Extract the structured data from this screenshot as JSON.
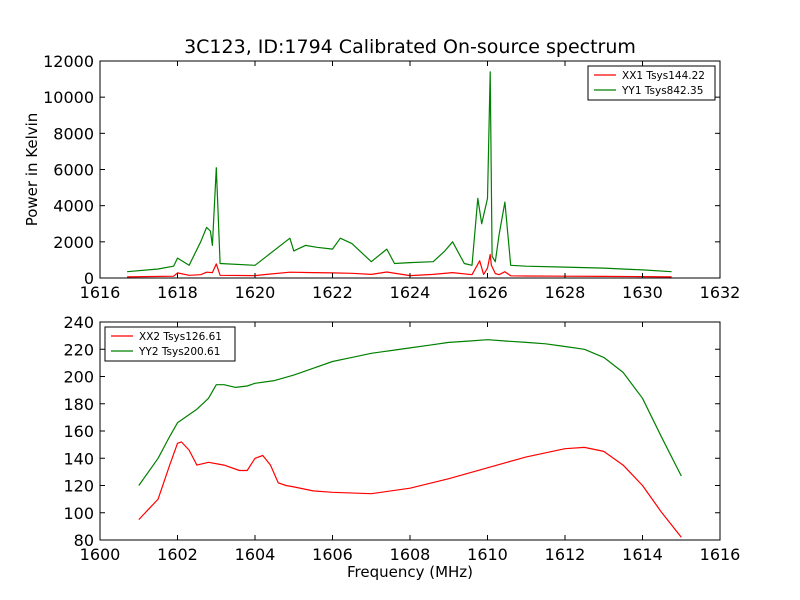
{
  "title": "3C123, ID:1794 Calibrated On-source spectrum",
  "colors": {
    "red": "#ff0000",
    "green": "#008000"
  },
  "chart_data": [
    {
      "type": "line",
      "title": "3C123, ID:1794 Calibrated On-source spectrum",
      "xlabel": "",
      "ylabel": "Power in Kelvin",
      "xlim": [
        1616,
        1632
      ],
      "ylim": [
        0,
        12000
      ],
      "xticks": [
        1616,
        1618,
        1620,
        1622,
        1624,
        1626,
        1628,
        1630,
        1632
      ],
      "yticks": [
        0,
        2000,
        4000,
        6000,
        8000,
        10000,
        12000
      ],
      "grid": false,
      "legend": "top-right",
      "series": [
        {
          "name": "XX1 Tsys144.22",
          "color": "#ff0000",
          "x": [
            1616.7,
            1617.9,
            1618.0,
            1618.3,
            1618.6,
            1618.75,
            1618.9,
            1619.0,
            1619.1,
            1620.0,
            1620.3,
            1620.9,
            1621.5,
            1622.0,
            1622.5,
            1623.0,
            1623.4,
            1624.0,
            1624.6,
            1625.1,
            1625.6,
            1625.8,
            1625.9,
            1626.0,
            1626.07,
            1626.1,
            1626.2,
            1626.3,
            1626.45,
            1626.6,
            1627.0,
            1628.0,
            1629.0,
            1630.0,
            1630.75
          ],
          "y": [
            60,
            100,
            280,
            150,
            180,
            320,
            300,
            780,
            150,
            130,
            200,
            320,
            300,
            280,
            260,
            200,
            330,
            130,
            200,
            300,
            180,
            950,
            200,
            550,
            1300,
            700,
            250,
            180,
            350,
            120,
            110,
            100,
            90,
            80,
            60
          ]
        },
        {
          "name": "YY1 Tsys842.35",
          "color": "#008000",
          "x": [
            1616.7,
            1617.5,
            1617.9,
            1618.0,
            1618.3,
            1618.6,
            1618.75,
            1618.85,
            1618.9,
            1619.0,
            1619.1,
            1620.0,
            1620.3,
            1620.9,
            1621.0,
            1621.3,
            1621.6,
            1622.0,
            1622.2,
            1622.5,
            1623.0,
            1623.4,
            1623.6,
            1624.0,
            1624.6,
            1624.9,
            1625.1,
            1625.4,
            1625.6,
            1625.75,
            1625.85,
            1626.0,
            1626.07,
            1626.12,
            1626.2,
            1626.3,
            1626.45,
            1626.6,
            1627.0,
            1628.0,
            1629.0,
            1630.0,
            1630.75
          ],
          "y": [
            350,
            500,
            650,
            1100,
            700,
            2000,
            2800,
            2600,
            1800,
            6100,
            800,
            700,
            1200,
            2200,
            1500,
            1800,
            1700,
            1600,
            2200,
            1900,
            900,
            1600,
            800,
            850,
            900,
            1500,
            2000,
            800,
            700,
            4400,
            3000,
            4400,
            11400,
            1200,
            900,
            2400,
            4200,
            700,
            650,
            600,
            550,
            450,
            350
          ]
        }
      ]
    },
    {
      "type": "line",
      "title": "",
      "xlabel": "Frequency (MHz)",
      "ylabel": "",
      "xlim": [
        1600,
        1616
      ],
      "ylim": [
        80,
        240
      ],
      "xticks": [
        1600,
        1602,
        1604,
        1606,
        1608,
        1610,
        1612,
        1614,
        1616
      ],
      "yticks": [
        80,
        100,
        120,
        140,
        160,
        180,
        200,
        220,
        240
      ],
      "grid": false,
      "legend": "top-left",
      "series": [
        {
          "name": "XX2 Tsys126.61",
          "color": "#ff0000",
          "x": [
            1601.0,
            1601.5,
            1601.8,
            1602.0,
            1602.1,
            1602.3,
            1602.5,
            1602.8,
            1603.2,
            1603.6,
            1603.8,
            1604.0,
            1604.2,
            1604.4,
            1604.6,
            1604.8,
            1605.0,
            1605.5,
            1606.0,
            1607.0,
            1608.0,
            1609.0,
            1610.0,
            1611.0,
            1612.0,
            1612.5,
            1613.0,
            1613.5,
            1614.0,
            1614.5,
            1615.0
          ],
          "y": [
            95,
            110,
            135,
            151,
            152,
            146,
            135,
            137,
            135,
            131,
            131,
            140,
            142,
            135,
            122,
            120,
            119,
            116,
            115,
            114,
            118,
            125,
            133,
            141,
            147,
            148,
            145,
            135,
            120,
            100,
            82
          ]
        },
        {
          "name": "YY2 Tsys200.61",
          "color": "#008000",
          "x": [
            1601.0,
            1601.5,
            1601.8,
            1602.0,
            1602.3,
            1602.5,
            1602.8,
            1603.0,
            1603.2,
            1603.5,
            1603.8,
            1604.0,
            1604.5,
            1605.0,
            1605.5,
            1606.0,
            1606.5,
            1607.0,
            1607.5,
            1608.0,
            1608.5,
            1609.0,
            1609.5,
            1610.0,
            1610.5,
            1611.0,
            1611.5,
            1612.0,
            1612.5,
            1613.0,
            1613.5,
            1614.0,
            1614.5,
            1615.0
          ],
          "y": [
            120,
            140,
            156,
            166,
            172,
            176,
            184,
            194,
            194,
            192,
            193,
            195,
            197,
            201,
            206,
            211,
            214,
            217,
            219,
            221,
            223,
            225,
            226,
            227,
            226,
            225,
            224,
            222,
            220,
            214,
            203,
            184,
            155,
            127
          ]
        }
      ]
    }
  ]
}
